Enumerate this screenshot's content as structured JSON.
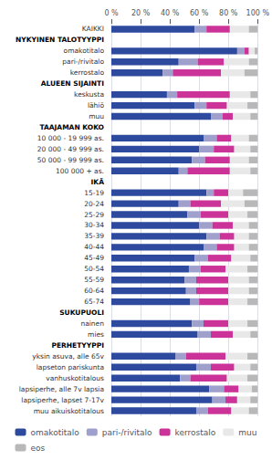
{
  "chart_data": {
    "type": "bar",
    "orientation": "horizontal",
    "stacked": true,
    "categories": [
      "KAIKKI",
      "NYKYINEN TALOTYYPPI",
      "omakotitalo",
      "pari-/rivitalo",
      "kerrostalo",
      "ALUEEN SIJAINTI",
      "keskusta",
      "lähiö",
      "muu",
      "TAAJAMAN KOKO",
      "10 000 - 19 999 as.",
      "20 000 - 49 999 as.",
      "50 000 - 99 999 as.",
      "100 000 + as.",
      "IKÄ",
      "15-19",
      "20-24",
      "25-29",
      "30-34",
      "35-39",
      "40-44",
      "45-49",
      "50-54",
      "55-59",
      "60-64",
      "65-74",
      "SUKUPUOLI",
      "nainen",
      "mies",
      "PERHETYYPPI",
      "yksin asuva, alle 65v",
      "lapseton pariskunta",
      "vanhuskotitalous",
      "lapsiperhe, alle 7v lapsia",
      "lapsiperhe, lapset 7-17v",
      "muu aikuiskotitalous"
    ],
    "series": [
      {
        "name": "omakotitalo",
        "color": "#2e4a9e",
        "values": [
          57,
          null,
          86,
          46,
          35,
          null,
          38,
          57,
          68,
          null,
          63,
          60,
          55,
          46,
          null,
          65,
          46,
          52,
          60,
          65,
          63,
          57,
          53,
          50,
          51,
          54,
          null,
          55,
          59,
          null,
          44,
          58,
          47,
          67,
          69,
          58
        ]
      },
      {
        "name": "pari-/rivitalo",
        "color": "#a0a0cc",
        "values": [
          8,
          null,
          5,
          13,
          7,
          null,
          7,
          8,
          8,
          null,
          9,
          10,
          9,
          6,
          null,
          5,
          8,
          9,
          9,
          9,
          9,
          9,
          8,
          8,
          7,
          6,
          null,
          8,
          9,
          null,
          7,
          10,
          7,
          10,
          9,
          8
        ]
      },
      {
        "name": "kerrostalo",
        "color": "#cc3399",
        "values": [
          16,
          null,
          3,
          18,
          33,
          null,
          36,
          14,
          7,
          null,
          10,
          14,
          17,
          29,
          null,
          10,
          21,
          19,
          14,
          10,
          12,
          16,
          17,
          22,
          22,
          20,
          null,
          17,
          15,
          null,
          27,
          16,
          25,
          10,
          8,
          16
        ]
      },
      {
        "name": "muu",
        "color": "#e8e8e8",
        "values": [
          13,
          null,
          4,
          17,
          16,
          null,
          14,
          14,
          12,
          null,
          12,
          11,
          13,
          14,
          null,
          10,
          16,
          13,
          11,
          10,
          10,
          13,
          15,
          14,
          14,
          13,
          null,
          13,
          12,
          null,
          15,
          11,
          14,
          9,
          9,
          12
        ]
      },
      {
        "name": "eos",
        "color": "#b8b8b8",
        "values": [
          6,
          null,
          2,
          6,
          9,
          null,
          5,
          7,
          5,
          null,
          6,
          5,
          6,
          5,
          null,
          10,
          9,
          7,
          6,
          6,
          6,
          5,
          7,
          6,
          6,
          7,
          null,
          7,
          5,
          null,
          7,
          5,
          7,
          4,
          5,
          6
        ]
      }
    ],
    "xlim": [
      0,
      100
    ],
    "xticks": [
      {
        "value": 0,
        "label": "0 %"
      },
      {
        "value": 20,
        "label": "20 %"
      },
      {
        "value": 40,
        "label": "40 %"
      },
      {
        "value": 60,
        "label": "60 %"
      },
      {
        "value": 80,
        "label": "80 %"
      },
      {
        "value": 100,
        "label": "100 %"
      }
    ],
    "grid": true,
    "legend": "bottom"
  }
}
